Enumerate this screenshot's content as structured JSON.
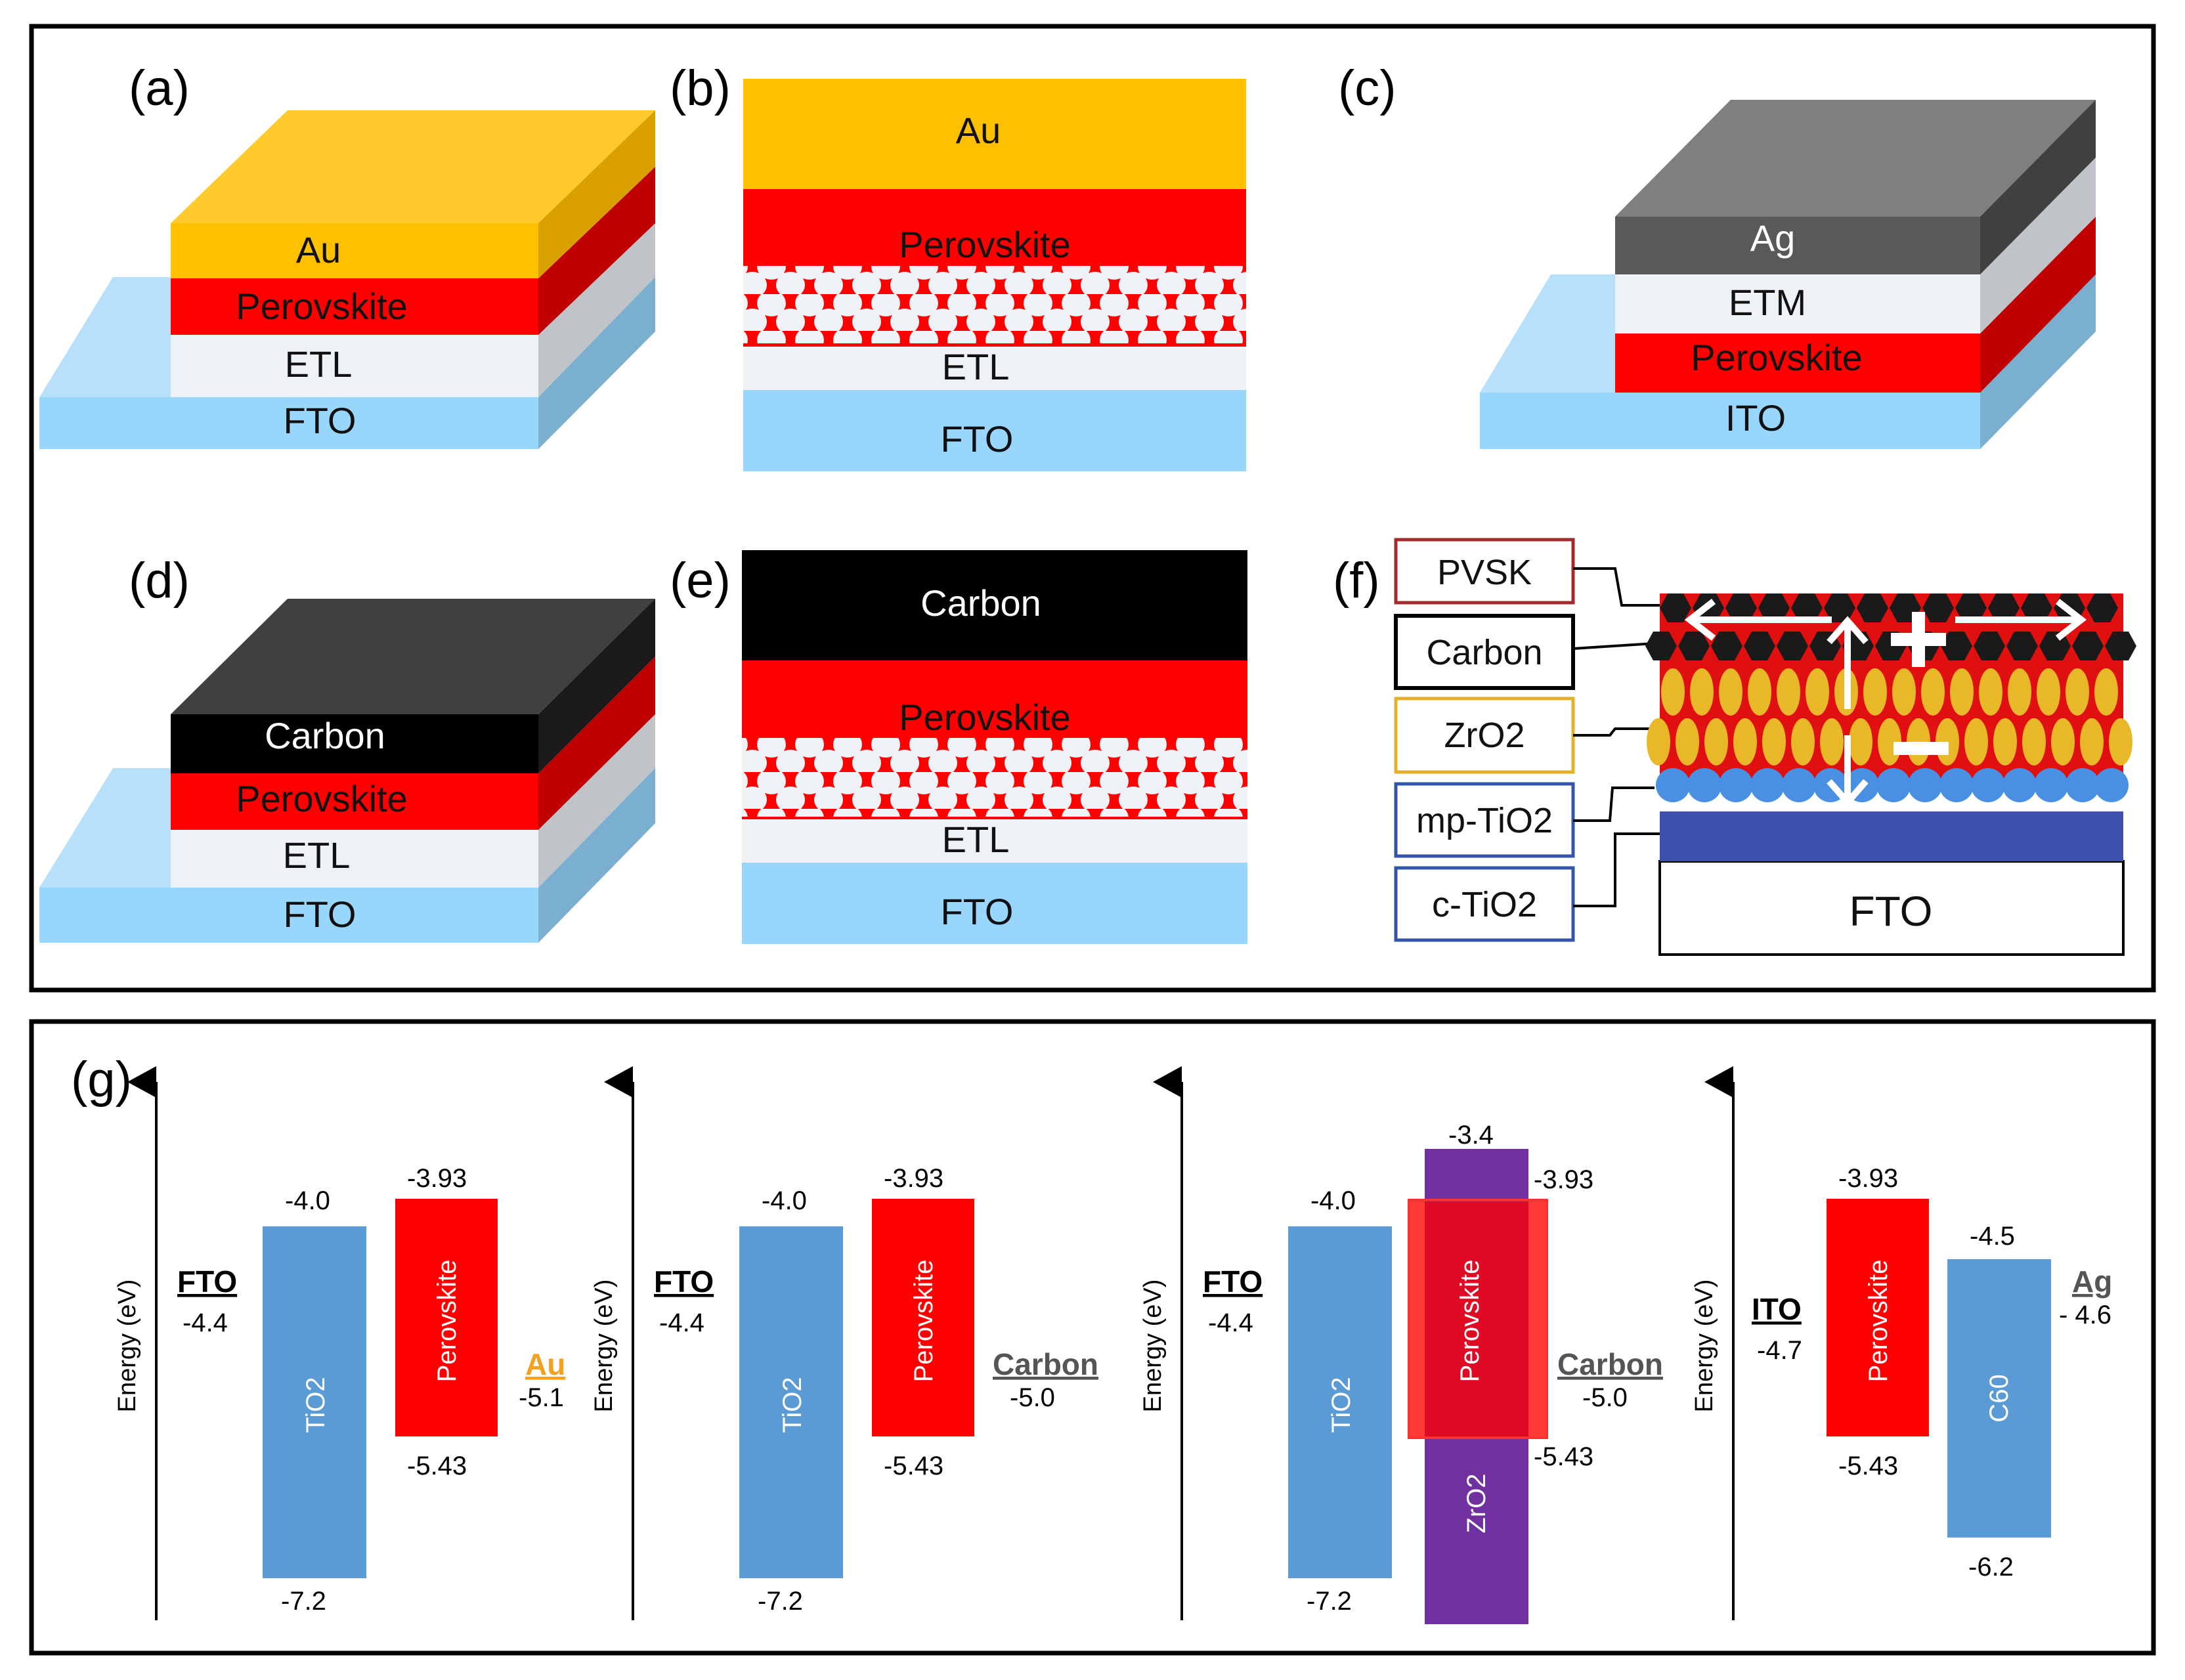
{
  "panels": {
    "a": {
      "label": "(a)",
      "layers": {
        "top": "Au",
        "l2": "Perovskite",
        "l3": "ETL",
        "sub": "FTO"
      }
    },
    "b": {
      "label": "(b)",
      "layers": {
        "top": "Au",
        "l2": "Perovskite",
        "l3": "ETL",
        "sub": "FTO"
      }
    },
    "c": {
      "label": "(c)",
      "layers": {
        "top": "Ag",
        "l2": "ETM",
        "l3": "Perovskite",
        "sub": "ITO"
      }
    },
    "d": {
      "label": "(d)",
      "layers": {
        "top": "Carbon",
        "l2": "Perovskite",
        "l3": "ETL",
        "sub": "FTO"
      }
    },
    "e": {
      "label": "(e)",
      "layers": {
        "top": "Carbon",
        "l2": "Perovskite",
        "l3": "ETL",
        "sub": "FTO"
      }
    },
    "f": {
      "label": "(f)",
      "legend": {
        "pvsk": "PVSK",
        "carbon": "Carbon",
        "zro2": "ZrO2",
        "mptio2": "mp-TiO2",
        "ctio2": "c-TiO2"
      },
      "substrate": "FTO"
    }
  },
  "energy": {
    "label": "(g)",
    "axis_label": "Energy (eV)",
    "d1": {
      "sub_name": "FTO",
      "sub_val": "-4.4",
      "etl_name": "TiO2",
      "etl_cb": "-4.0",
      "etl_vb": "-7.2",
      "pvsk_name": "Perovskite",
      "pvsk_cb": "-3.93",
      "pvsk_vb": "-5.43",
      "elec_name": "Au",
      "elec_val": "-5.1"
    },
    "d2": {
      "sub_name": "FTO",
      "sub_val": "-4.4",
      "etl_name": "TiO2",
      "etl_cb": "-4.0",
      "etl_vb": "-7.2",
      "pvsk_name": "Perovskite",
      "pvsk_cb": "-3.93",
      "pvsk_vb": "-5.43",
      "elec_name": "Carbon",
      "elec_val": "-5.0"
    },
    "d3": {
      "sub_name": "FTO",
      "sub_val": "-4.4",
      "etl_name": "TiO2",
      "etl_cb": "-4.0",
      "etl_vb": "-7.2",
      "zro_name": "ZrO2",
      "zro_cb": "-3.4",
      "pvsk_name": "Perovskite",
      "pvsk_cb": "-3.93",
      "pvsk_vb": "-5.43",
      "elec_name": "Carbon",
      "elec_val": "-5.0"
    },
    "d4": {
      "sub_name": "ITO",
      "sub_val": "-4.7",
      "pvsk_name": "Perovskite",
      "pvsk_cb": "-3.93",
      "pvsk_vb": "-5.43",
      "etl_name": "C60",
      "etl_cb": "-4.5",
      "etl_vb": "-6.2",
      "elec_name": "Ag",
      "elec_val": "- 4.6"
    }
  },
  "colors": {
    "gold": "#FFC000",
    "red": "#FF0000",
    "etl": "#EEF2F6",
    "fto": "#99D6FB",
    "ag": "#595959",
    "carbon": "#000000",
    "tio2": "#5B9BD5",
    "zro2": "#7030A0"
  }
}
